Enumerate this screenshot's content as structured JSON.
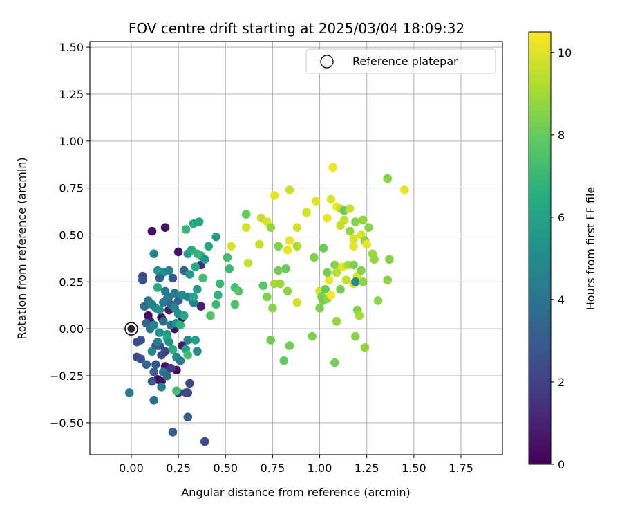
{
  "chart_data": {
    "type": "scatter",
    "title": "FOV centre drift starting at 2025/03/04 18:09:32",
    "xlabel": "Angular distance from reference (arcmin)",
    "ylabel": "Rotation from reference (arcmin)",
    "xlim": [
      -0.22,
      1.97
    ],
    "ylim": [
      -0.67,
      1.53
    ],
    "xticks": [
      0.0,
      0.25,
      0.5,
      0.75,
      1.0,
      1.25,
      1.5,
      1.75
    ],
    "xtick_labels": [
      "0.00",
      "0.25",
      "0.50",
      "0.75",
      "1.00",
      "1.25",
      "1.50",
      "1.75"
    ],
    "yticks": [
      -0.5,
      -0.25,
      0.0,
      0.25,
      0.5,
      0.75,
      1.0,
      1.25,
      1.5
    ],
    "ytick_labels": [
      "−0.50",
      "−0.25",
      "0.00",
      "0.25",
      "0.50",
      "0.75",
      "1.00",
      "1.25",
      "1.50"
    ],
    "grid": true,
    "colormap": "viridis",
    "colorbar": {
      "label": "Hours from first FF file",
      "range": [
        0,
        10.5
      ],
      "ticks": [
        0,
        2,
        4,
        6,
        8,
        10
      ],
      "tick_labels": [
        "0",
        "2",
        "4",
        "6",
        "8",
        "10"
      ]
    },
    "legend": {
      "position": "top-right",
      "entries": [
        {
          "label": "Reference platepar"
        }
      ]
    },
    "reference_point": {
      "x": 0.0,
      "y": 0.0
    },
    "points": [
      {
        "x": 0.11,
        "y": 0.52,
        "c": 0.4
      },
      {
        "x": 0.18,
        "y": 0.54,
        "c": 0.5
      },
      {
        "x": 0.06,
        "y": 0.28,
        "c": 2.3
      },
      {
        "x": 0.06,
        "y": 0.26,
        "c": 2.6
      },
      {
        "x": 0.25,
        "y": 0.41,
        "c": 0.6
      },
      {
        "x": 0.37,
        "y": 0.34,
        "c": 1.3
      },
      {
        "x": 0.37,
        "y": 0.12,
        "c": 0.9
      },
      {
        "x": 0.16,
        "y": 0.06,
        "c": 0.5
      },
      {
        "x": 0.2,
        "y": 0.1,
        "c": 0.8
      },
      {
        "x": 0.09,
        "y": 0.07,
        "c": 0.3
      },
      {
        "x": 0.1,
        "y": 0.04,
        "c": 0.7
      },
      {
        "x": 0.23,
        "y": 0.0,
        "c": 0.5
      },
      {
        "x": 0.27,
        "y": 0.06,
        "c": 0.4
      },
      {
        "x": 0.18,
        "y": -0.2,
        "c": 0.6
      },
      {
        "x": 0.14,
        "y": -0.27,
        "c": 0.3
      },
      {
        "x": 0.16,
        "y": -0.28,
        "c": 0.5
      },
      {
        "x": 0.24,
        "y": -0.22,
        "c": 0.4
      },
      {
        "x": 0.27,
        "y": -0.09,
        "c": 0.8
      },
      {
        "x": 0.03,
        "y": -0.07,
        "c": 2.4
      },
      {
        "x": 0.05,
        "y": -0.06,
        "c": 2.6
      },
      {
        "x": 0.03,
        "y": -0.15,
        "c": 2.3
      },
      {
        "x": 0.05,
        "y": -0.16,
        "c": 2.5
      },
      {
        "x": 0.08,
        "y": -0.19,
        "c": 3.5
      },
      {
        "x": 0.11,
        "y": -0.28,
        "c": 3.0
      },
      {
        "x": 0.12,
        "y": -0.23,
        "c": 3.2
      },
      {
        "x": 0.13,
        "y": -0.19,
        "c": 2.9
      },
      {
        "x": 0.13,
        "y": -0.09,
        "c": 2.7
      },
      {
        "x": 0.15,
        "y": -0.09,
        "c": 2.8
      },
      {
        "x": 0.16,
        "y": -0.14,
        "c": 2.5
      },
      {
        "x": 0.18,
        "y": -0.12,
        "c": 2.2
      },
      {
        "x": 0.21,
        "y": -0.21,
        "c": 1.8
      },
      {
        "x": 0.25,
        "y": -0.34,
        "c": 1.6
      },
      {
        "x": 0.3,
        "y": -0.34,
        "c": 1.9
      },
      {
        "x": 0.31,
        "y": -0.29,
        "c": 2.3
      },
      {
        "x": 0.29,
        "y": -0.34,
        "c": 2.5
      },
      {
        "x": 0.12,
        "y": -0.38,
        "c": 4.0
      },
      {
        "x": -0.01,
        "y": -0.34,
        "c": 4.3
      },
      {
        "x": 0.22,
        "y": -0.55,
        "c": 3.1
      },
      {
        "x": 0.3,
        "y": -0.47,
        "c": 3.2
      },
      {
        "x": 0.39,
        "y": -0.6,
        "c": 2.4
      },
      {
        "x": 0.12,
        "y": 0.4,
        "c": 4.6
      },
      {
        "x": 0.14,
        "y": 0.31,
        "c": 5.6
      },
      {
        "x": 0.17,
        "y": 0.3,
        "c": 5.2
      },
      {
        "x": 0.15,
        "y": 0.27,
        "c": 3.3
      },
      {
        "x": 0.2,
        "y": 0.31,
        "c": 4.9
      },
      {
        "x": 0.22,
        "y": 0.27,
        "c": 3.0
      },
      {
        "x": 0.28,
        "y": 0.31,
        "c": 3.5
      },
      {
        "x": 0.31,
        "y": 0.29,
        "c": 5.6
      },
      {
        "x": 0.14,
        "y": 0.22,
        "c": 6.6
      },
      {
        "x": 0.18,
        "y": 0.2,
        "c": 4.4
      },
      {
        "x": 0.2,
        "y": 0.17,
        "c": 3.9
      },
      {
        "x": 0.23,
        "y": 0.19,
        "c": 4.3
      },
      {
        "x": 0.25,
        "y": 0.15,
        "c": 3.2
      },
      {
        "x": 0.27,
        "y": 0.18,
        "c": 5.2
      },
      {
        "x": 0.3,
        "y": 0.17,
        "c": 4.7
      },
      {
        "x": 0.33,
        "y": 0.14,
        "c": 4.5
      },
      {
        "x": 0.07,
        "y": 0.12,
        "c": 3.8
      },
      {
        "x": 0.09,
        "y": 0.15,
        "c": 4.2
      },
      {
        "x": 0.11,
        "y": 0.13,
        "c": 4.6
      },
      {
        "x": 0.13,
        "y": 0.11,
        "c": 4.8
      },
      {
        "x": 0.15,
        "y": 0.1,
        "c": 5.4
      },
      {
        "x": 0.17,
        "y": 0.14,
        "c": 4.1
      },
      {
        "x": 0.19,
        "y": 0.16,
        "c": 4.4
      },
      {
        "x": 0.21,
        "y": 0.13,
        "c": 3.6
      },
      {
        "x": 0.23,
        "y": 0.11,
        "c": 4.8
      },
      {
        "x": 0.25,
        "y": 0.08,
        "c": 5.2
      },
      {
        "x": 0.08,
        "y": 0.03,
        "c": 3.4
      },
      {
        "x": 0.1,
        "y": 0.0,
        "c": 4.2
      },
      {
        "x": 0.12,
        "y": 0.02,
        "c": 4.8
      },
      {
        "x": 0.15,
        "y": -0.02,
        "c": 5.3
      },
      {
        "x": 0.17,
        "y": 0.04,
        "c": 3.9
      },
      {
        "x": 0.19,
        "y": -0.03,
        "c": 5.8
      },
      {
        "x": 0.21,
        "y": 0.02,
        "c": 4.1
      },
      {
        "x": 0.24,
        "y": 0.03,
        "c": 5.5
      },
      {
        "x": 0.26,
        "y": 0.02,
        "c": 6.8
      },
      {
        "x": 0.28,
        "y": 0.07,
        "c": 6.4
      },
      {
        "x": 0.19,
        "y": -0.05,
        "c": 6.5
      },
      {
        "x": 0.2,
        "y": -0.07,
        "c": 5.4
      },
      {
        "x": 0.22,
        "y": -0.11,
        "c": 6.7
      },
      {
        "x": 0.24,
        "y": -0.15,
        "c": 5.1
      },
      {
        "x": 0.26,
        "y": -0.17,
        "c": 4.3
      },
      {
        "x": 0.29,
        "y": -0.11,
        "c": 6.2
      },
      {
        "x": 0.3,
        "y": -0.14,
        "c": 7.3
      },
      {
        "x": 0.34,
        "y": -0.06,
        "c": 6.0
      },
      {
        "x": 0.35,
        "y": -0.12,
        "c": 5.0
      },
      {
        "x": 0.3,
        "y": -0.06,
        "c": 4.9
      },
      {
        "x": 0.14,
        "y": -0.07,
        "c": 4.6
      },
      {
        "x": 0.11,
        "y": -0.12,
        "c": 5.0
      },
      {
        "x": 0.17,
        "y": -0.23,
        "c": 4.2
      },
      {
        "x": 0.19,
        "y": -0.25,
        "c": 3.7
      },
      {
        "x": 0.16,
        "y": -0.31,
        "c": 4.4
      },
      {
        "x": 0.24,
        "y": -0.33,
        "c": 7.3
      },
      {
        "x": 0.3,
        "y": 0.4,
        "c": 5.7
      },
      {
        "x": 0.32,
        "y": 0.42,
        "c": 6.5
      },
      {
        "x": 0.35,
        "y": 0.4,
        "c": 6.8
      },
      {
        "x": 0.37,
        "y": 0.39,
        "c": 6.9
      },
      {
        "x": 0.33,
        "y": 0.56,
        "c": 6.6
      },
      {
        "x": 0.36,
        "y": 0.57,
        "c": 6.1
      },
      {
        "x": 0.29,
        "y": 0.53,
        "c": 6.9
      },
      {
        "x": 0.41,
        "y": 0.44,
        "c": 6.2
      },
      {
        "x": 0.45,
        "y": 0.49,
        "c": 5.9
      },
      {
        "x": 0.39,
        "y": 0.37,
        "c": 5.7
      },
      {
        "x": 0.34,
        "y": 0.33,
        "c": 6.5
      },
      {
        "x": 0.38,
        "y": 0.27,
        "c": 7.3
      },
      {
        "x": 0.35,
        "y": 0.21,
        "c": 5.5
      },
      {
        "x": 0.33,
        "y": 0.17,
        "c": 6.3
      },
      {
        "x": 0.47,
        "y": 0.24,
        "c": 7.0
      },
      {
        "x": 0.46,
        "y": 0.18,
        "c": 6.8
      },
      {
        "x": 0.42,
        "y": 0.07,
        "c": 7.6
      },
      {
        "x": 0.45,
        "y": 0.13,
        "c": 7.2
      },
      {
        "x": 0.51,
        "y": 0.38,
        "c": 7.3
      },
      {
        "x": 0.52,
        "y": 0.32,
        "c": 7.1
      },
      {
        "x": 0.55,
        "y": 0.22,
        "c": 7.4
      },
      {
        "x": 0.57,
        "y": 0.2,
        "c": 7.7
      },
      {
        "x": 0.55,
        "y": 0.13,
        "c": 7.5
      },
      {
        "x": 0.61,
        "y": 0.61,
        "c": 8.0
      },
      {
        "x": 0.53,
        "y": 0.44,
        "c": 9.9
      },
      {
        "x": 0.62,
        "y": 0.35,
        "c": 9.6
      },
      {
        "x": 0.61,
        "y": 0.54,
        "c": 9.8
      },
      {
        "x": 0.68,
        "y": 0.45,
        "c": 9.7
      },
      {
        "x": 0.69,
        "y": 0.59,
        "c": 9.5
      },
      {
        "x": 0.72,
        "y": 0.57,
        "c": 10.0
      },
      {
        "x": 0.74,
        "y": 0.54,
        "c": 8.8
      },
      {
        "x": 0.76,
        "y": 0.71,
        "c": 10.1
      },
      {
        "x": 0.84,
        "y": 0.74,
        "c": 9.7
      },
      {
        "x": 0.78,
        "y": 0.44,
        "c": 8.5
      },
      {
        "x": 0.78,
        "y": 0.31,
        "c": 8.3
      },
      {
        "x": 0.82,
        "y": 0.32,
        "c": 8.1
      },
      {
        "x": 0.83,
        "y": 0.42,
        "c": 10.2
      },
      {
        "x": 0.84,
        "y": 0.47,
        "c": 10.2
      },
      {
        "x": 0.88,
        "y": 0.44,
        "c": 9.2
      },
      {
        "x": 0.88,
        "y": 0.54,
        "c": 9.8
      },
      {
        "x": 0.76,
        "y": 0.24,
        "c": 9.1
      },
      {
        "x": 0.79,
        "y": 0.24,
        "c": 8.9
      },
      {
        "x": 0.83,
        "y": 0.2,
        "c": 8.7
      },
      {
        "x": 0.7,
        "y": 0.23,
        "c": 7.8
      },
      {
        "x": 0.72,
        "y": 0.17,
        "c": 8.4
      },
      {
        "x": 0.75,
        "y": 0.11,
        "c": 8.6
      },
      {
        "x": 0.88,
        "y": 0.14,
        "c": 9.8
      },
      {
        "x": 0.74,
        "y": -0.06,
        "c": 8.2
      },
      {
        "x": 0.84,
        "y": -0.09,
        "c": 8.2
      },
      {
        "x": 0.81,
        "y": -0.17,
        "c": 8.0
      },
      {
        "x": 0.96,
        "y": -0.04,
        "c": 8.4
      },
      {
        "x": 0.93,
        "y": 0.62,
        "c": 9.8
      },
      {
        "x": 0.98,
        "y": 0.68,
        "c": 10.1
      },
      {
        "x": 1.04,
        "y": 0.59,
        "c": 10.2
      },
      {
        "x": 1.06,
        "y": 0.69,
        "c": 9.9
      },
      {
        "x": 1.07,
        "y": 0.86,
        "c": 10.3
      },
      {
        "x": 1.09,
        "y": 0.65,
        "c": 10.4
      },
      {
        "x": 1.11,
        "y": 0.64,
        "c": 9.7
      },
      {
        "x": 1.13,
        "y": 0.58,
        "c": 9.6
      },
      {
        "x": 1.13,
        "y": 0.63,
        "c": 8.0
      },
      {
        "x": 1.16,
        "y": 0.64,
        "c": 9.7
      },
      {
        "x": 1.11,
        "y": 0.55,
        "c": 9.6
      },
      {
        "x": 1.16,
        "y": 0.52,
        "c": 8.8
      },
      {
        "x": 1.19,
        "y": 0.57,
        "c": 8.5
      },
      {
        "x": 1.23,
        "y": 0.58,
        "c": 8.8
      },
      {
        "x": 1.26,
        "y": 0.54,
        "c": 8.6
      },
      {
        "x": 1.22,
        "y": 0.5,
        "c": 9.9
      },
      {
        "x": 1.24,
        "y": 0.47,
        "c": 8.8
      },
      {
        "x": 1.25,
        "y": 0.45,
        "c": 10.2
      },
      {
        "x": 1.18,
        "y": 0.48,
        "c": 10.0
      },
      {
        "x": 1.18,
        "y": 0.44,
        "c": 10.1
      },
      {
        "x": 1.28,
        "y": 0.4,
        "c": 8.9
      },
      {
        "x": 1.29,
        "y": 0.37,
        "c": 8.8
      },
      {
        "x": 1.36,
        "y": 0.8,
        "c": 8.6
      },
      {
        "x": 1.45,
        "y": 0.74,
        "c": 10.2
      },
      {
        "x": 1.37,
        "y": 0.37,
        "c": 8.6
      },
      {
        "x": 1.36,
        "y": 0.26,
        "c": 8.7
      },
      {
        "x": 0.97,
        "y": 0.38,
        "c": 8.5
      },
      {
        "x": 1.02,
        "y": 0.43,
        "c": 8.1
      },
      {
        "x": 1.05,
        "y": 0.26,
        "c": 10.2
      },
      {
        "x": 1.04,
        "y": 0.3,
        "c": 8.3
      },
      {
        "x": 1.08,
        "y": 0.34,
        "c": 8.5
      },
      {
        "x": 1.09,
        "y": 0.3,
        "c": 9.4
      },
      {
        "x": 1.12,
        "y": 0.33,
        "c": 10.2
      },
      {
        "x": 1.15,
        "y": 0.34,
        "c": 9.1
      },
      {
        "x": 1.14,
        "y": 0.26,
        "c": 9.7
      },
      {
        "x": 1.18,
        "y": 0.34,
        "c": 8.4
      },
      {
        "x": 1.18,
        "y": 0.24,
        "c": 10.0
      },
      {
        "x": 1.2,
        "y": 0.28,
        "c": 9.9
      },
      {
        "x": 1.19,
        "y": 0.25,
        "c": 5.1
      },
      {
        "x": 1.22,
        "y": 0.31,
        "c": 8.5
      },
      {
        "x": 1.23,
        "y": 0.25,
        "c": 8.7
      },
      {
        "x": 1.0,
        "y": 0.2,
        "c": 9.9
      },
      {
        "x": 1.01,
        "y": 0.17,
        "c": 8.4
      },
      {
        "x": 1.02,
        "y": 0.15,
        "c": 8.2
      },
      {
        "x": 1.03,
        "y": 0.21,
        "c": 8.0
      },
      {
        "x": 1.04,
        "y": 0.16,
        "c": 8.7
      },
      {
        "x": 1.06,
        "y": 0.18,
        "c": 10.3
      },
      {
        "x": 1.11,
        "y": 0.21,
        "c": 8.3
      },
      {
        "x": 1.0,
        "y": 0.11,
        "c": 8.4
      },
      {
        "x": 1.09,
        "y": 0.04,
        "c": 8.8
      },
      {
        "x": 1.2,
        "y": 0.1,
        "c": 8.5
      },
      {
        "x": 1.21,
        "y": 0.07,
        "c": 9.1
      },
      {
        "x": 1.19,
        "y": -0.04,
        "c": 8.6
      },
      {
        "x": 1.24,
        "y": -0.1,
        "c": 8.8
      },
      {
        "x": 1.31,
        "y": 0.15,
        "c": 8.6
      },
      {
        "x": 1.08,
        "y": -0.18,
        "c": 8.3
      }
    ]
  }
}
